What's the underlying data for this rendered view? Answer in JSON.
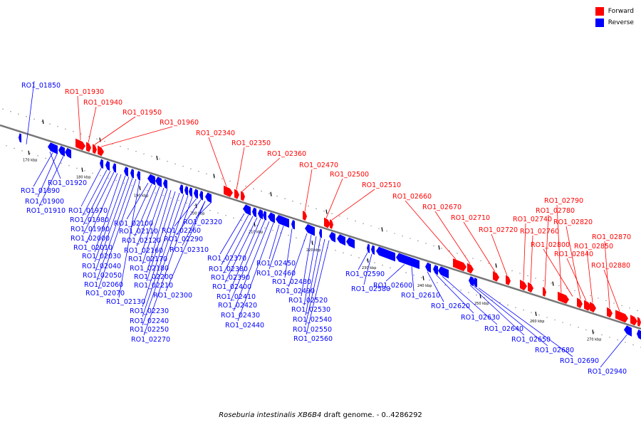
{
  "legend": {
    "forward": {
      "label": "Forward",
      "color": "#ff0000"
    },
    "reverse": {
      "label": "Reverse",
      "color": "#0000ff"
    }
  },
  "caption": {
    "organism": "Roseburia intestinalis XB6B4",
    "suffix": "draft genome. - 0..4286292"
  },
  "colors": {
    "backbone": "#777777",
    "tick": "#000000"
  },
  "scale_labels": [
    "170 kbp",
    "180 kbp",
    "190 kbp",
    "200 kbp",
    "210 kbp",
    "220 kbp",
    "230 kbp",
    "240 kbp",
    "250 kbp",
    "260 kbp",
    "270 kbp"
  ],
  "forward_genes": [
    "RO1_01930",
    "RO1_01940",
    "RO1_01950",
    "RO1_01960",
    "RO1_02340",
    "RO1_02350",
    "RO1_02360",
    "RO1_02470",
    "RO1_02500",
    "RO1_02510",
    "RO1_02660",
    "RO1_02670",
    "RO1_02710",
    "RO1_02720",
    "RO1_02740",
    "RO1_02760",
    "RO1_02780",
    "RO1_02790",
    "RO1_02800",
    "RO1_02820",
    "RO1_02840",
    "RO1_02850",
    "RO1_02870",
    "RO1_02880"
  ],
  "reverse_genes": [
    "RO1_01850",
    "RO1_01920",
    "RO1_01890",
    "RO1_01900",
    "RO1_01910",
    "RO1_01970",
    "RO1_01980",
    "RO1_01990",
    "RO1_02000",
    "RO1_02010",
    "RO1_02030",
    "RO1_02040",
    "RO1_02050",
    "RO1_02060",
    "RO1_02070",
    "RO1_02130",
    "RO1_02100",
    "RO1_02110",
    "RO1_02120",
    "RO1_02160",
    "RO1_02170",
    "RO1_02180",
    "RO1_02200",
    "RO1_02210",
    "RO1_02300",
    "RO1_02230",
    "RO1_02240",
    "RO1_02250",
    "RO1_02270",
    "RO1_02260",
    "RO1_02290",
    "RO1_02310",
    "RO1_02320",
    "RO1_02370",
    "RO1_02380",
    "RO1_02390",
    "RO1_02400",
    "RO1_02410",
    "RO1_02420",
    "RO1_02430",
    "RO1_02440",
    "RO1_02450",
    "RO1_02460",
    "RO1_02480",
    "RO1_02490",
    "RO1_02520",
    "RO1_02530",
    "RO1_02540",
    "RO1_02550",
    "RO1_02560",
    "RO1_02590",
    "RO1_02580",
    "RO1_02600",
    "RO1_02610",
    "RO1_02620",
    "RO1_02630",
    "RO1_02640",
    "RO1_02650",
    "RO1_02680",
    "RO1_02690",
    "RO1_02940"
  ]
}
